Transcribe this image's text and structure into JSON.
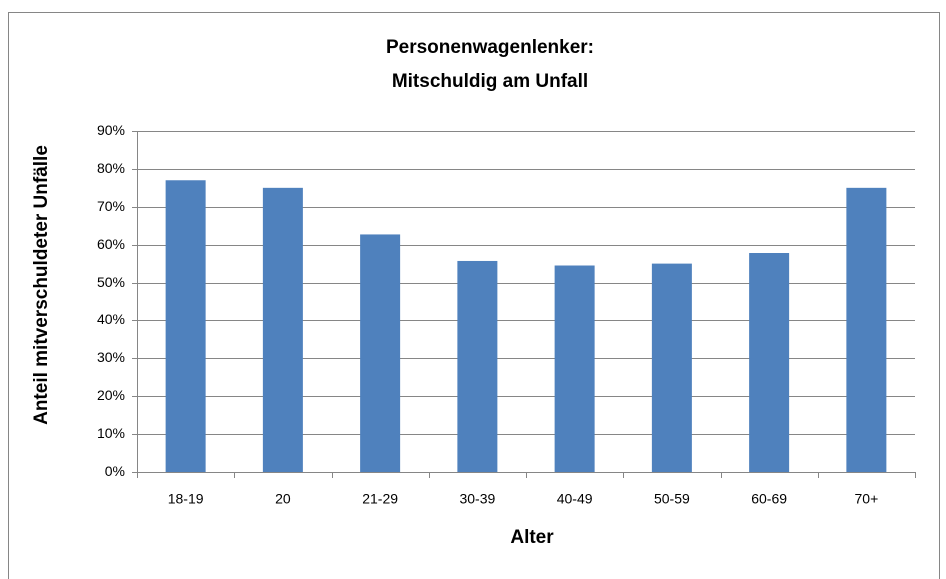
{
  "chart_data": {
    "type": "bar",
    "title": [
      "Personenwagenlenker:",
      "Mitschuldig am Unfall"
    ],
    "x_label": "Alter",
    "y_label": "Anteil mitverschuldeter Unfälle",
    "categories": [
      "18-19",
      "20",
      "21-29",
      "30-39",
      "40-49",
      "50-59",
      "60-69",
      "70+"
    ],
    "values": [
      77,
      75,
      62.7,
      55.7,
      54.5,
      55,
      57.8,
      75
    ],
    "color": "#4f81bd",
    "ylim": [
      0,
      90
    ],
    "yticks": [
      {
        "value": 0,
        "label": "0%"
      },
      {
        "value": 10,
        "label": "10%"
      },
      {
        "value": 20,
        "label": "20%"
      },
      {
        "value": 30,
        "label": "30%"
      },
      {
        "value": 40,
        "label": "40%"
      },
      {
        "value": 50,
        "label": "50%"
      },
      {
        "value": 60,
        "label": "60%"
      },
      {
        "value": 70,
        "label": "70%"
      },
      {
        "value": 80,
        "label": "80%"
      },
      {
        "value": 90,
        "label": "90%"
      }
    ],
    "grid": true
  }
}
